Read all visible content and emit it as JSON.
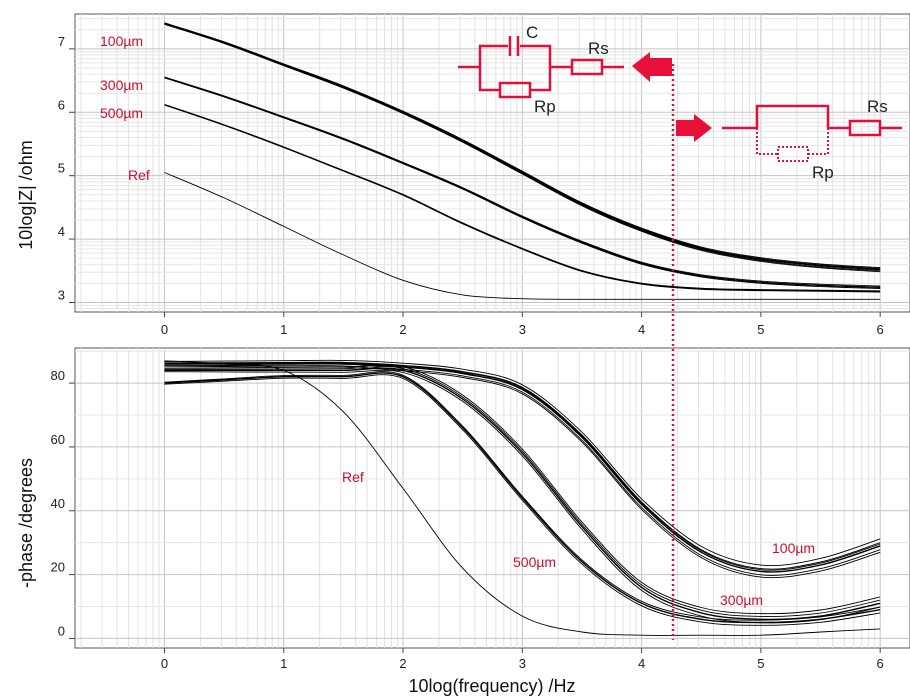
{
  "chart_data": [
    {
      "type": "line",
      "title": "",
      "xlabel": "",
      "ylabel": "10log|Z| /ohm",
      "xlim": [
        -0.75,
        6.25
      ],
      "ylim": [
        2.85,
        7.55
      ],
      "x_ticks": [
        "0",
        "1",
        "2",
        "3",
        "4",
        "5",
        "6"
      ],
      "y_ticks": [
        "3",
        "4",
        "5",
        "6",
        "7"
      ],
      "y_tick_values": [
        3,
        4,
        5,
        6,
        7
      ],
      "grid": true,
      "annotations": [
        "100µm",
        "300µm",
        "500µm",
        "Ref"
      ],
      "series": [
        {
          "group": "100µm",
          "x": [
            0,
            0.5,
            1,
            1.5,
            2,
            2.5,
            3,
            3.5,
            4,
            4.5,
            5,
            5.5,
            6
          ],
          "y": [
            7.4,
            7.1,
            6.75,
            6.4,
            6.0,
            5.55,
            5.05,
            4.55,
            4.15,
            3.85,
            3.68,
            3.58,
            3.52
          ]
        },
        {
          "group": "300µm",
          "x": [
            0,
            0.5,
            1,
            1.5,
            2,
            2.5,
            3,
            3.5,
            4,
            4.5,
            5,
            5.5,
            6
          ],
          "y": [
            6.55,
            6.25,
            5.92,
            5.58,
            5.2,
            4.8,
            4.35,
            3.95,
            3.62,
            3.42,
            3.32,
            3.27,
            3.24
          ]
        },
        {
          "group": "500µm",
          "x": [
            0,
            0.5,
            1,
            1.5,
            2,
            2.5,
            3,
            3.5,
            4,
            4.5,
            5,
            5.5,
            6
          ],
          "y": [
            6.12,
            5.8,
            5.45,
            5.08,
            4.7,
            4.25,
            3.85,
            3.5,
            3.3,
            3.22,
            3.2,
            3.19,
            3.18
          ]
        },
        {
          "group": "Ref",
          "x": [
            0,
            0.5,
            1,
            1.5,
            2,
            2.5,
            3,
            3.5,
            4,
            4.5,
            5,
            5.5,
            6
          ],
          "y": [
            5.05,
            4.65,
            4.2,
            3.75,
            3.35,
            3.12,
            3.06,
            3.05,
            3.05,
            3.05,
            3.05,
            3.05,
            3.05
          ]
        }
      ]
    },
    {
      "type": "line",
      "title": "",
      "xlabel": "10log(frequency) /Hz",
      "ylabel": "-phase /degrees",
      "xlim": [
        -0.75,
        6.25
      ],
      "ylim": [
        -3,
        91
      ],
      "x_ticks": [
        "0",
        "1",
        "2",
        "3",
        "4",
        "5",
        "6"
      ],
      "y_ticks": [
        "0",
        "20",
        "40",
        "60",
        "80"
      ],
      "y_tick_values": [
        0,
        20,
        40,
        60,
        80
      ],
      "grid": true,
      "annotations": [
        "Ref",
        "500µm",
        "100µm",
        "300µm"
      ],
      "series": [
        {
          "group": "100µm",
          "x": [
            0,
            0.5,
            1,
            1.5,
            2,
            2.5,
            3,
            3.5,
            4,
            4.5,
            5,
            5.5,
            6
          ],
          "y": [
            86,
            86,
            86,
            86,
            85,
            83,
            78,
            63,
            42,
            27,
            21,
            23,
            29
          ]
        },
        {
          "group": "300µm",
          "x": [
            0,
            0.5,
            1,
            1.5,
            2,
            2.5,
            3,
            3.5,
            4,
            4.5,
            5,
            5.5,
            6
          ],
          "y": [
            84,
            84,
            84,
            84,
            84,
            75,
            58,
            35,
            16,
            8,
            6,
            7,
            11
          ]
        },
        {
          "group": "500µm",
          "x": [
            0,
            0.5,
            1,
            1.5,
            2,
            2.5,
            3,
            3.5,
            4,
            4.5,
            5,
            5.5,
            6
          ],
          "y": [
            80,
            81,
            82,
            82,
            82,
            66,
            44,
            24,
            11,
            6,
            5,
            6,
            9
          ]
        },
        {
          "group": "Ref",
          "x": [
            0,
            0.5,
            1,
            1.5,
            2,
            2.5,
            3,
            3.5,
            4,
            4.5,
            5,
            5.5,
            6
          ],
          "y": [
            87,
            86,
            84,
            71,
            47,
            22,
            7,
            2,
            1,
            1,
            1,
            2,
            3
          ]
        }
      ]
    }
  ],
  "marker": {
    "x": 4.25,
    "color": "#e0103a"
  },
  "circuit_a": {
    "labels": [
      "C",
      "Rs",
      "Rp"
    ]
  },
  "circuit_b": {
    "labels": [
      "Rs",
      "Rp"
    ]
  },
  "colors": {
    "curve": "#000000",
    "grid": "#cccccc",
    "annotation": "#c8102e",
    "circuit": "#e0103a",
    "arrow": "#e8103a"
  }
}
